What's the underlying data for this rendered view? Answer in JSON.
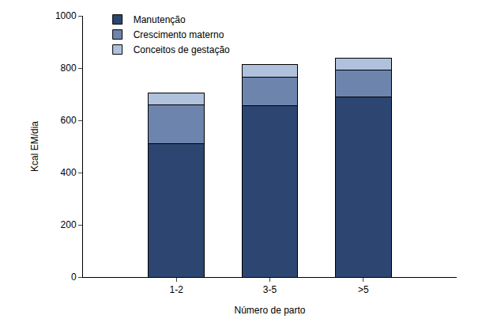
{
  "chart_data": {
    "type": "bar",
    "stacked": true,
    "categories": [
      "1-2",
      "3-5",
      ">5"
    ],
    "series": [
      {
        "name": "Manutenção",
        "color": "#2c4671",
        "values": [
          512,
          655,
          688
        ]
      },
      {
        "name": "Crescimento materno",
        "color": "#6d84ad",
        "values": [
          148,
          110,
          104
        ]
      },
      {
        "name": "Conceitos de gestação",
        "color": "#afc1dc",
        "values": [
          46,
          50,
          46
        ]
      }
    ],
    "x_label": "Número de parto",
    "y_label": "Kcal EM/dia",
    "ylim": [
      0,
      1000
    ],
    "yticks": [
      0,
      200,
      400,
      600,
      800,
      1000
    ],
    "grid": false,
    "legend": "top-left"
  }
}
